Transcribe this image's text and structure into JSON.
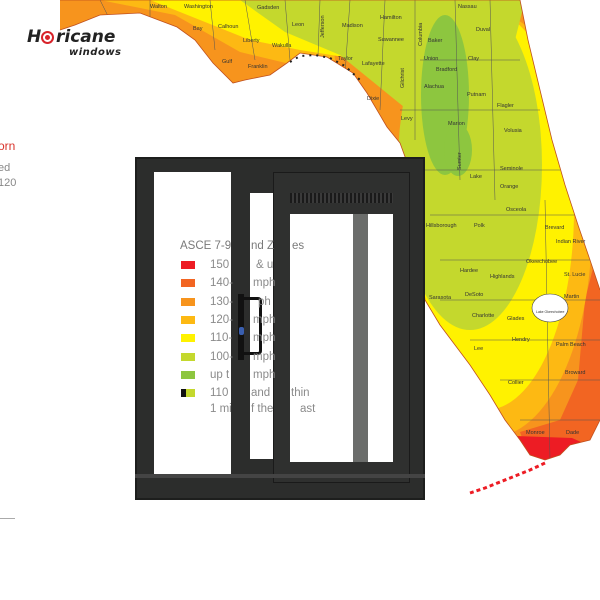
{
  "logo": {
    "first": "H",
    "rest": "ricane",
    "sub": "windows"
  },
  "side_text": {
    "line1": "orn",
    "line2": "ed",
    "line3": "120"
  },
  "colors": {
    "zone_150": "#ed1c24",
    "zone_140": "#f26522",
    "zone_130": "#f7941d",
    "zone_120": "#fdb913",
    "zone_110": "#fff200",
    "zone_100": "#c4d82d",
    "zone_up_to": "#8dc63f",
    "window_frame": "#2c2d2c",
    "logo_red": "#d8232a"
  },
  "legend": {
    "title": [
      "ASCE 7-9",
      "nd Z",
      "es"
    ],
    "rows": [
      {
        "swatch": "#ed1c24",
        "parts": [
          "150",
          "& u"
        ]
      },
      {
        "swatch": "#f26522",
        "parts": [
          "140-",
          "mph"
        ]
      },
      {
        "swatch": "#f7941d",
        "parts": [
          "130-",
          "ph"
        ]
      },
      {
        "swatch": "#fdb913",
        "parts": [
          "120-",
          "mph"
        ]
      },
      {
        "swatch": "#fff200",
        "parts": [
          "110-",
          "mph"
        ]
      },
      {
        "swatch": "#c4d82d",
        "parts": [
          "100-",
          "mph"
        ]
      },
      {
        "swatch": "#8dc63f",
        "parts": [
          "up t",
          "mph"
        ]
      },
      {
        "swatch": "#111111",
        "parts": [
          "110",
          "and",
          "thin"
        ]
      },
      {
        "parts": [
          "1 mi",
          "f the",
          "ast"
        ]
      }
    ]
  },
  "counties": [
    "Walton",
    "Washington",
    "Calhoun",
    "Bay",
    "Liberty",
    "Gulf",
    "Franklin",
    "Gadsden",
    "Leon",
    "Jefferson",
    "Madison",
    "Hamilton",
    "Suwannee",
    "Columbia",
    "Baker",
    "Nassau",
    "Duval",
    "Union",
    "Bradford",
    "Clay",
    "Wakulla",
    "Taylor",
    "Lafayette",
    "Dixie",
    "Gilchrist",
    "Alachua",
    "Putnam",
    "Levy",
    "Marion",
    "Flagler",
    "Volusia",
    "Sumter",
    "Lake",
    "Seminole",
    "Orange",
    "Osceola",
    "Polk",
    "Hillsborough",
    "Brevard",
    "Indian River",
    "Hardee",
    "Highlands",
    "Okeechobee",
    "St. Lucie",
    "Sarasota",
    "DeSoto",
    "Martin",
    "Lake Okeechobee",
    "Charlotte",
    "Glades",
    "Hendry",
    "Palm Beach",
    "Lee",
    "Broward",
    "Collier",
    "Monroe",
    "Dade"
  ]
}
